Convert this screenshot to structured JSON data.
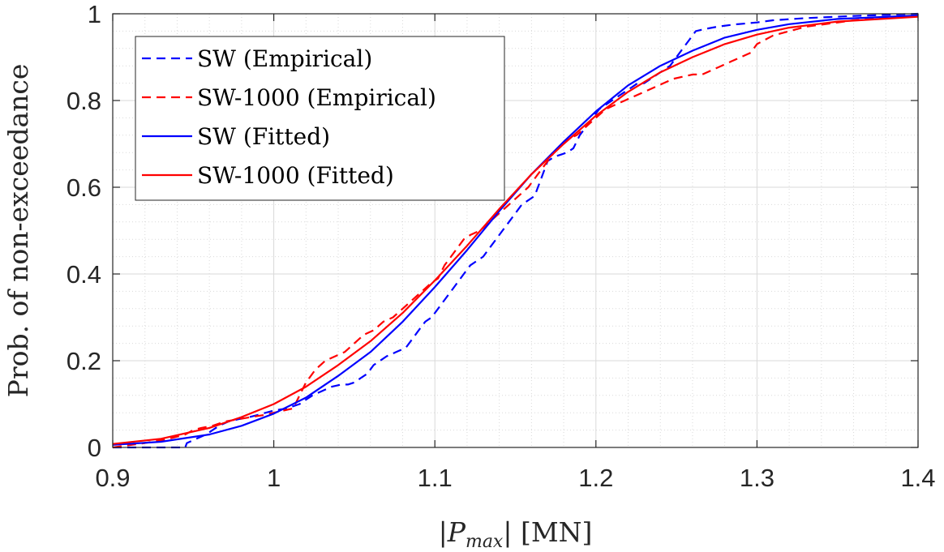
{
  "chart_data": {
    "type": "line",
    "title": "",
    "xlabel": "|P_max| [MN]",
    "xlabel_parts": {
      "left": "|",
      "var": "P",
      "sub": "max",
      "right": "|  [MN]"
    },
    "ylabel": "Prob. of non-exceedance",
    "xlim": [
      0.9,
      1.4
    ],
    "ylim": [
      0,
      1
    ],
    "xticks": [
      0.9,
      1.0,
      1.1,
      1.2,
      1.3,
      1.4
    ],
    "xtick_labels": [
      "0.9",
      "1",
      "1.1",
      "1.2",
      "1.3",
      "1.4"
    ],
    "yticks": [
      0,
      0.2,
      0.4,
      0.6,
      0.8,
      1
    ],
    "ytick_labels": [
      "0",
      "0.2",
      "0.4",
      "0.6",
      "0.8",
      "1"
    ],
    "grid": true,
    "minor_grid": true,
    "legend_position": "top-left",
    "series": [
      {
        "name": "SW (Empirical)",
        "color": "#0000ff",
        "style": "dashed",
        "x": [
          0.9,
          0.945,
          0.946,
          0.952,
          0.955,
          0.958,
          0.962,
          0.966,
          0.972,
          0.978,
          0.985,
          0.99,
          0.995,
          1.0,
          1.008,
          1.016,
          1.02,
          1.024,
          1.03,
          1.036,
          1.042,
          1.046,
          1.05,
          1.054,
          1.058,
          1.062,
          1.066,
          1.07,
          1.076,
          1.082,
          1.086,
          1.09,
          1.094,
          1.098,
          1.102,
          1.106,
          1.11,
          1.114,
          1.118,
          1.122,
          1.126,
          1.13,
          1.134,
          1.138,
          1.142,
          1.146,
          1.15,
          1.154,
          1.158,
          1.162,
          1.166,
          1.17,
          1.174,
          1.178,
          1.182,
          1.186,
          1.19,
          1.194,
          1.198,
          1.202,
          1.206,
          1.21,
          1.214,
          1.218,
          1.222,
          1.226,
          1.23,
          1.234,
          1.238,
          1.242,
          1.246,
          1.25,
          1.254,
          1.258,
          1.262,
          1.268,
          1.275,
          1.285,
          1.3,
          1.31,
          1.33,
          1.36,
          1.4
        ],
        "y": [
          0.0,
          0.0,
          0.01,
          0.02,
          0.025,
          0.03,
          0.04,
          0.05,
          0.06,
          0.065,
          0.07,
          0.075,
          0.08,
          0.085,
          0.09,
          0.1,
          0.11,
          0.12,
          0.13,
          0.14,
          0.145,
          0.145,
          0.15,
          0.16,
          0.17,
          0.19,
          0.2,
          0.21,
          0.22,
          0.23,
          0.25,
          0.27,
          0.29,
          0.3,
          0.32,
          0.34,
          0.36,
          0.38,
          0.4,
          0.42,
          0.43,
          0.44,
          0.46,
          0.48,
          0.5,
          0.52,
          0.54,
          0.56,
          0.57,
          0.58,
          0.62,
          0.66,
          0.67,
          0.675,
          0.68,
          0.69,
          0.72,
          0.74,
          0.76,
          0.78,
          0.79,
          0.8,
          0.81,
          0.82,
          0.83,
          0.84,
          0.84,
          0.85,
          0.86,
          0.87,
          0.88,
          0.9,
          0.92,
          0.94,
          0.96,
          0.965,
          0.97,
          0.975,
          0.98,
          0.985,
          0.99,
          0.995,
          1.0
        ]
      },
      {
        "name": "SW-1000 (Empirical)",
        "color": "#ff0000",
        "style": "dashed",
        "x": [
          0.9,
          0.92,
          0.935,
          0.945,
          0.95,
          0.955,
          0.962,
          0.97,
          0.978,
          0.986,
          0.994,
          1.0,
          1.006,
          1.012,
          1.016,
          1.02,
          1.026,
          1.032,
          1.038,
          1.044,
          1.05,
          1.056,
          1.062,
          1.068,
          1.074,
          1.08,
          1.086,
          1.092,
          1.098,
          1.102,
          1.106,
          1.11,
          1.114,
          1.118,
          1.122,
          1.128,
          1.134,
          1.14,
          1.146,
          1.152,
          1.158,
          1.164,
          1.17,
          1.176,
          1.182,
          1.188,
          1.194,
          1.2,
          1.206,
          1.212,
          1.218,
          1.224,
          1.23,
          1.236,
          1.242,
          1.248,
          1.254,
          1.26,
          1.266,
          1.272,
          1.278,
          1.284,
          1.29,
          1.296,
          1.3,
          1.31,
          1.33,
          1.36,
          1.4
        ],
        "y": [
          0.0,
          0.01,
          0.02,
          0.03,
          0.04,
          0.045,
          0.05,
          0.06,
          0.065,
          0.07,
          0.075,
          0.08,
          0.085,
          0.09,
          0.12,
          0.15,
          0.18,
          0.2,
          0.21,
          0.22,
          0.24,
          0.26,
          0.27,
          0.29,
          0.3,
          0.32,
          0.34,
          0.36,
          0.38,
          0.39,
          0.42,
          0.44,
          0.46,
          0.48,
          0.49,
          0.5,
          0.52,
          0.54,
          0.56,
          0.58,
          0.6,
          0.63,
          0.66,
          0.69,
          0.71,
          0.72,
          0.74,
          0.76,
          0.78,
          0.79,
          0.8,
          0.81,
          0.82,
          0.83,
          0.84,
          0.85,
          0.855,
          0.86,
          0.86,
          0.87,
          0.88,
          0.89,
          0.9,
          0.91,
          0.93,
          0.95,
          0.97,
          0.985,
          0.995
        ]
      },
      {
        "name": "SW (Fitted)",
        "color": "#0000ff",
        "style": "solid",
        "x": [
          0.9,
          0.93,
          0.96,
          0.98,
          1.0,
          1.02,
          1.04,
          1.06,
          1.08,
          1.1,
          1.12,
          1.14,
          1.16,
          1.18,
          1.2,
          1.22,
          1.24,
          1.26,
          1.28,
          1.3,
          1.32,
          1.35,
          1.4
        ],
        "y": [
          0.006,
          0.013,
          0.03,
          0.05,
          0.078,
          0.115,
          0.165,
          0.22,
          0.29,
          0.37,
          0.455,
          0.545,
          0.63,
          0.705,
          0.775,
          0.835,
          0.88,
          0.915,
          0.945,
          0.963,
          0.976,
          0.988,
          0.996
        ]
      },
      {
        "name": "SW-1000 (Fitted)",
        "color": "#ff0000",
        "style": "solid",
        "x": [
          0.9,
          0.93,
          0.96,
          0.98,
          1.0,
          1.02,
          1.04,
          1.06,
          1.08,
          1.1,
          1.12,
          1.14,
          1.16,
          1.18,
          1.2,
          1.22,
          1.24,
          1.26,
          1.28,
          1.3,
          1.32,
          1.35,
          1.4
        ],
        "y": [
          0.008,
          0.02,
          0.045,
          0.07,
          0.1,
          0.14,
          0.19,
          0.245,
          0.31,
          0.385,
          0.465,
          0.55,
          0.63,
          0.7,
          0.765,
          0.82,
          0.865,
          0.9,
          0.93,
          0.952,
          0.968,
          0.982,
          0.993
        ]
      }
    ]
  }
}
